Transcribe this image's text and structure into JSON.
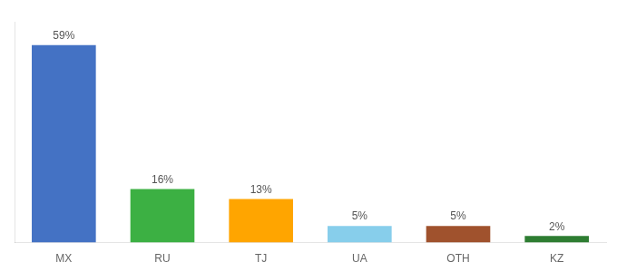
{
  "chart_data": {
    "type": "bar",
    "categories": [
      "MX",
      "RU",
      "TJ",
      "UA",
      "OTH",
      "KZ"
    ],
    "values": [
      59,
      16,
      13,
      5,
      5,
      2
    ],
    "value_labels": [
      "59%",
      "16%",
      "13%",
      "5%",
      "5%",
      "2%"
    ],
    "colors": [
      "#4472C4",
      "#3CB043",
      "#FFA500",
      "#87CEEB",
      "#A0522D",
      "#2E7D32"
    ],
    "ylim": [
      0,
      66
    ],
    "grid": false,
    "data_labels": true,
    "tick_labels": "x"
  }
}
